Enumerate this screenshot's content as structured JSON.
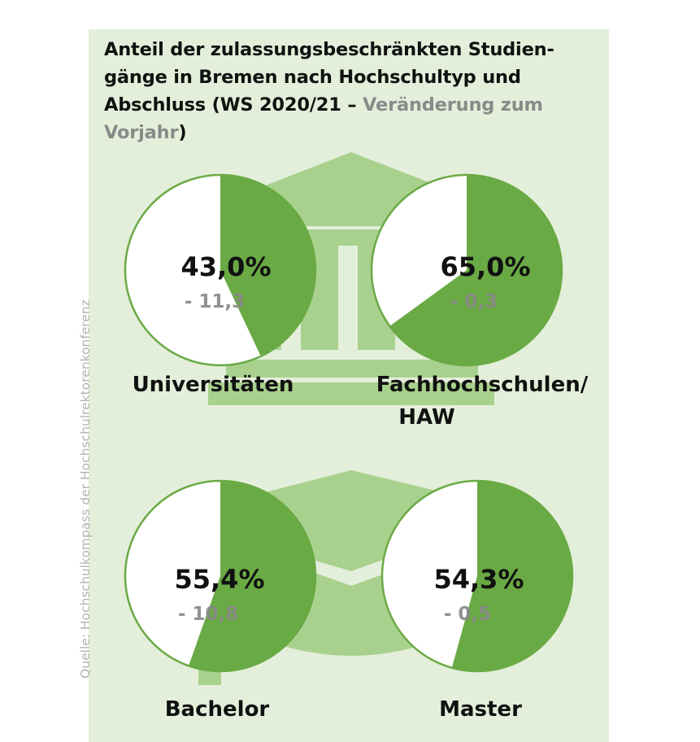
{
  "title": {
    "main": "Anteil der zulassungsbeschränkten Studien-gänge in Bremen nach Hochschultyp und Abschluss (WS 2020/21 – ",
    "highlight": "Veränderung zum Vorjahr",
    "end": ")"
  },
  "source": "Quelle: Hochschulkompass der Hochschulrektorenkonferenz",
  "colors": {
    "panel": "#e3efda",
    "slice": "#6aaa45",
    "circle_outline": "#6aaa45",
    "circle_fill": "#ffffff",
    "change_text": "#888888",
    "background_icons": "#a9d18e"
  },
  "icons": [
    "university-building-icon",
    "graduation-cap-icon"
  ],
  "chart_data": [
    {
      "type": "pie",
      "label": "Universitäten",
      "label_lines": [
        "Universitäten"
      ],
      "value": 43.0,
      "value_text": "43,0%",
      "change": -11.3,
      "change_text": "- 11,3"
    },
    {
      "type": "pie",
      "label": "Fachhochschulen/ HAW",
      "label_lines": [
        "Fachhochschulen/",
        "HAW"
      ],
      "value": 65.0,
      "value_text": "65,0%",
      "change": -0.3,
      "change_text": "- 0,3"
    },
    {
      "type": "pie",
      "label": "Bachelor",
      "label_lines": [
        "Bachelor"
      ],
      "value": 55.4,
      "value_text": "55,4%",
      "change": -10.8,
      "change_text": "- 10,8"
    },
    {
      "type": "pie",
      "label": "Master",
      "label_lines": [
        "Master"
      ],
      "value": 54.3,
      "value_text": "54,3%",
      "change": -0.5,
      "change_text": "- 0,5"
    }
  ]
}
